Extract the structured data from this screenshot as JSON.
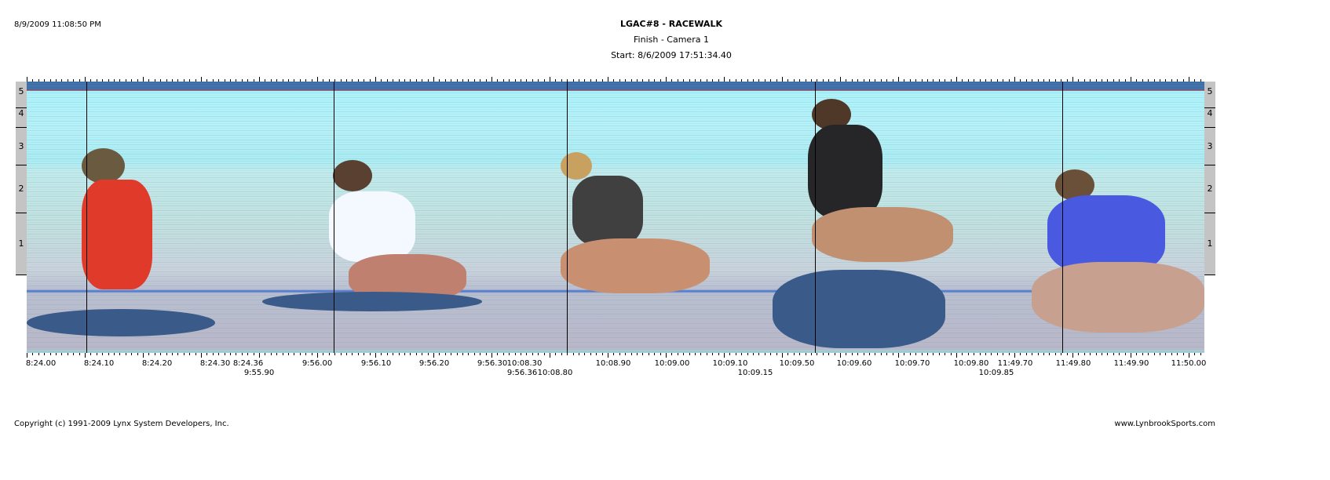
{
  "print_timestamp": "8/9/2009 11:08:50 PM",
  "header": {
    "title": "LGAC#8 - RACEWALK",
    "subtitle": "Finish - Camera 1",
    "start": "Start: 8/6/2009 17:51:34.40"
  },
  "lanes": [
    "5",
    "4",
    "3",
    "2",
    "1"
  ],
  "time_labels_row1": [
    "8:24.00",
    "8:24.10",
    "8:24.20",
    "8:24.30",
    "8:24.36",
    "9:56.00",
    "9:56.10",
    "9:56.20",
    "9:56.30",
    "10:08.30",
    "10:08.90",
    "10:09.00",
    "10:09.10",
    "10:09.50",
    "10:09.60",
    "10:09.70",
    "10:09.80",
    "11:49.70",
    "11:49.80",
    "11:49.90",
    "11:50.00"
  ],
  "time_labels_row2": [
    "9:55.90",
    "9:56.36",
    "10:08.80",
    "10:09.15",
    "10:09.85"
  ],
  "footer": {
    "copyright": "Copyright (c) 1991-2009 Lynx System Developers, Inc.",
    "website": "www.LynbrookSports.com"
  },
  "colors": {
    "lane_bar": "#c4c4c4",
    "sky": "#aaf4fb",
    "track": "#b8c0d0"
  }
}
